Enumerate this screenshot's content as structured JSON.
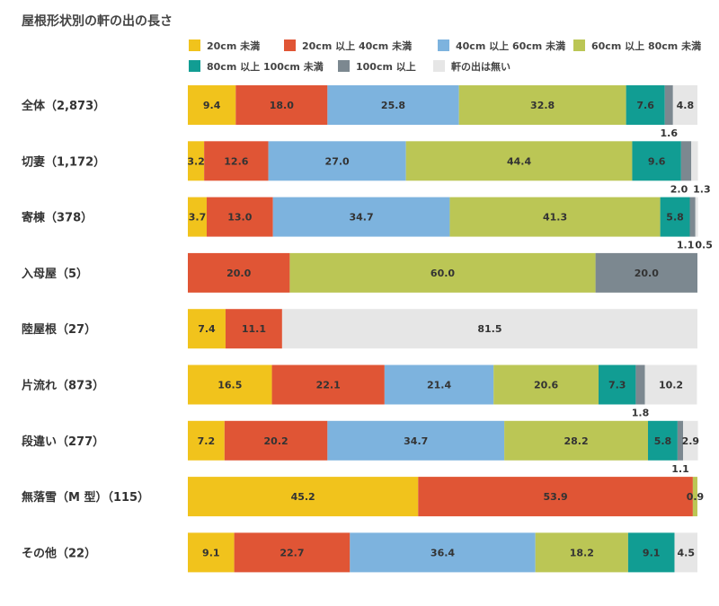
{
  "chart_data": {
    "type": "bar",
    "orientation": "horizontal",
    "stacked": true,
    "title": "屋根形状別の軒の出の長さ",
    "legend_position": "top",
    "xlim": [
      0,
      100
    ],
    "grid": false,
    "categories": [
      "全体（2,873）",
      "切妻（1,172）",
      "寄棟（378）",
      "入母屋（5）",
      "陸屋根（27）",
      "片流れ（873）",
      "段違い（277）",
      "無落雪（M 型）（115）",
      "その他（22）"
    ],
    "series": [
      {
        "name": "20cm 未満",
        "color": "#f1c31c",
        "values": [
          9.4,
          3.2,
          3.7,
          0,
          7.4,
          16.5,
          7.2,
          45.2,
          9.1
        ]
      },
      {
        "name": "20cm 以上 40cm 未満",
        "color": "#e05535",
        "values": [
          18.0,
          12.6,
          13.0,
          20.0,
          11.1,
          22.1,
          20.2,
          53.9,
          22.7
        ]
      },
      {
        "name": "40cm 以上 60cm 未満",
        "color": "#7db3de",
        "values": [
          25.8,
          27.0,
          34.7,
          0,
          0,
          21.4,
          34.7,
          0,
          36.4
        ]
      },
      {
        "name": "60cm 以上 80cm 未満",
        "color": "#bbc655",
        "values": [
          32.8,
          44.4,
          41.3,
          60.0,
          0,
          20.6,
          28.2,
          0.9,
          18.2
        ]
      },
      {
        "name": "80cm 以上 100cm 未満",
        "color": "#119d93",
        "values": [
          7.6,
          9.6,
          5.8,
          0,
          0,
          7.3,
          5.8,
          0,
          9.1
        ]
      },
      {
        "name": "100cm 以上",
        "color": "#7c8890",
        "values": [
          1.6,
          2.0,
          1.1,
          20.0,
          0,
          1.8,
          1.1,
          0,
          0
        ]
      },
      {
        "name": "軒の出は無い",
        "color": "#e6e6e6",
        "values": [
          4.8,
          1.3,
          0.5,
          0,
          81.5,
          10.2,
          2.9,
          0,
          4.5
        ]
      }
    ],
    "inner_labels": [
      [
        "9.4",
        "18.0",
        "25.8",
        "32.8",
        "7.6",
        "",
        "4.8"
      ],
      [
        "3.2",
        "12.6",
        "27.0",
        "44.4",
        "9.6",
        "",
        ""
      ],
      [
        "3.7",
        "13.0",
        "34.7",
        "41.3",
        "5.8",
        "",
        ""
      ],
      [
        "",
        "20.0",
        "",
        "60.0",
        "",
        "20.0",
        ""
      ],
      [
        "7.4",
        "11.1",
        "",
        "",
        "",
        "",
        "81.5"
      ],
      [
        "16.5",
        "22.1",
        "21.4",
        "20.6",
        "7.3",
        "",
        "10.2"
      ],
      [
        "7.2",
        "20.2",
        "34.7",
        "28.2",
        "5.8",
        "",
        "2.9"
      ],
      [
        "45.2",
        "53.9",
        "",
        "0.9",
        "",
        "",
        ""
      ],
      [
        "9.1",
        "22.7",
        "36.4",
        "18.2",
        "9.1",
        "",
        "4.5"
      ]
    ],
    "outside_labels": [
      [
        {
          "series": 5,
          "text": "1.6"
        }
      ],
      [
        {
          "series": 5,
          "text": "2.0"
        },
        {
          "series": 6,
          "text": "1.3"
        }
      ],
      [
        {
          "series": 5,
          "text": "1.1"
        },
        {
          "series": 6,
          "text": "0.5"
        }
      ],
      [],
      [],
      [
        {
          "series": 5,
          "text": "1.8"
        }
      ],
      [
        {
          "series": 5,
          "text": "1.1"
        }
      ],
      [],
      []
    ]
  }
}
